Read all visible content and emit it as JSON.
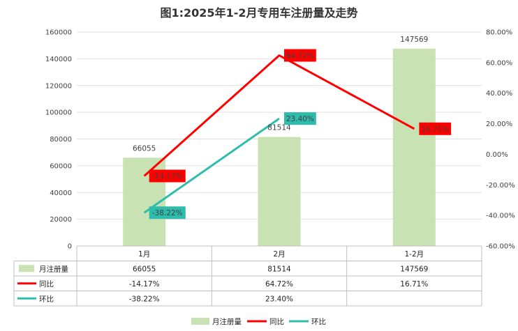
{
  "chart_data": {
    "type": "bar",
    "title": "图1:2025年1-2月专用车注册量及走势",
    "categories": [
      "1月",
      "2月",
      "1-2月"
    ],
    "primary_axis": {
      "ylim": [
        0,
        160000
      ],
      "ticks": [
        "0",
        "20000",
        "40000",
        "60000",
        "80000",
        "100000",
        "120000",
        "140000",
        "160000"
      ]
    },
    "secondary_axis": {
      "ylim": [
        -60,
        80
      ],
      "ticks": [
        "-60.00%",
        "-40.00%",
        "-20.00%",
        "0.00%",
        "20.00%",
        "40.00%",
        "60.00%",
        "80.00%"
      ]
    },
    "grid": true,
    "legend_position": "bottom",
    "series": [
      {
        "name": "月注册量",
        "type": "bar",
        "axis": "primary",
        "color": "#c9e2b3",
        "values": [
          66055,
          81514,
          147569
        ],
        "labels": [
          "66055",
          "81514",
          "147569"
        ]
      },
      {
        "name": "同比",
        "type": "line",
        "axis": "secondary",
        "color": "#ff0000",
        "values": [
          -14.17,
          64.72,
          16.71
        ],
        "labels": [
          "-14.17%",
          "64.72%",
          "16.71%"
        ]
      },
      {
        "name": "环比",
        "type": "line",
        "axis": "secondary",
        "color": "#2ebcac",
        "values": [
          -38.22,
          23.4,
          null
        ],
        "labels": [
          "-38.22%",
          "23.40%",
          ""
        ]
      }
    ]
  }
}
